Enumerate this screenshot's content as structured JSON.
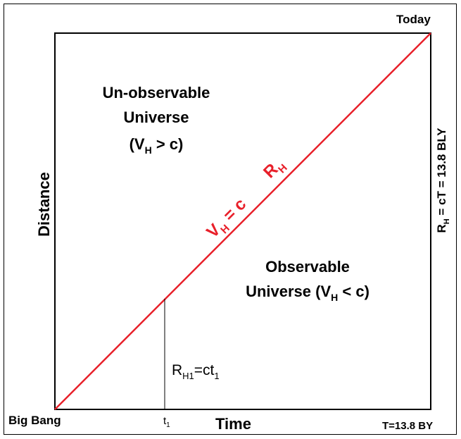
{
  "corner_labels": {
    "today": "Today",
    "big_bang": "Big Bang",
    "total_time": "T=13.8 BY"
  },
  "axes": {
    "x_label": "Time",
    "y_label": "Distance",
    "x_tick": {
      "main": "t",
      "sub": "1"
    }
  },
  "regions": {
    "unobservable": {
      "line1": "Un-observable",
      "line2": "Universe",
      "condition": {
        "open": "(V",
        "sub": "H",
        "close": " > c)"
      }
    },
    "observable": {
      "line1": "Observable",
      "line2": {
        "text": "Universe (V",
        "sub": "H",
        "close": " < c)"
      }
    }
  },
  "diagonal": {
    "label_vh": {
      "main": "V",
      "sub": "H",
      "rest": " = c"
    },
    "label_rh": {
      "main": "R",
      "sub": "H"
    }
  },
  "right_axis_label": {
    "main": "R",
    "sub": "H",
    "rest": " =  cT = 13.8 BLY"
  },
  "marker_label": {
    "r": "R",
    "sub1": "H1",
    "eq": "=ct",
    "sub2": "1"
  },
  "colors": {
    "diagonal": "#e8202a",
    "axes": "#000000",
    "background": "#ffffff"
  }
}
